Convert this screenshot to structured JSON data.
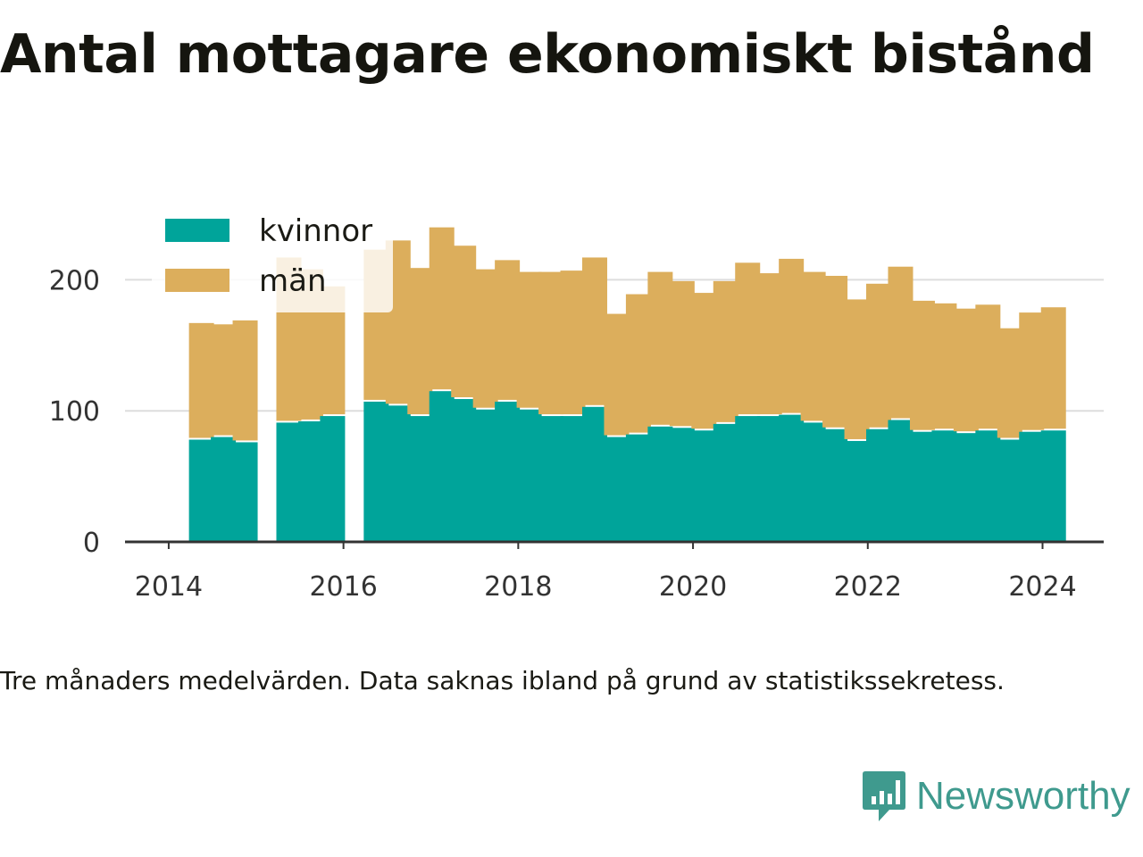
{
  "title": "Antal mottagare ekonomiskt bistånd",
  "caption": "Tre månaders medelvärden. Data saknas ibland på grund av statistikssekretess.",
  "brand": {
    "name": "Newsworthy",
    "color": "#3f9a8e"
  },
  "colors": {
    "kvinnor": "#00a49a",
    "man": "#dcae5c",
    "grid": "#dddddd",
    "axis": "#333333"
  },
  "chart_data": {
    "type": "bar",
    "stacked": true,
    "x_unit": "year",
    "x": [
      2014.375,
      2014.625,
      2014.875,
      2015.375,
      2015.625,
      2015.875,
      2016.375,
      2016.625,
      2016.875,
      2017.125,
      2017.375,
      2017.625,
      2017.875,
      2018.125,
      2018.375,
      2018.625,
      2018.875,
      2019.125,
      2019.375,
      2019.625,
      2019.875,
      2020.125,
      2020.375,
      2020.625,
      2020.875,
      2021.125,
      2021.375,
      2021.625,
      2021.875,
      2022.125,
      2022.375,
      2022.625,
      2022.875,
      2023.125,
      2023.375,
      2023.625,
      2023.875,
      2024.125
    ],
    "series": [
      {
        "name": "kvinnor",
        "values": [
          78,
          80,
          76,
          91,
          92,
          96,
          107,
          104,
          96,
          115,
          109,
          101,
          107,
          101,
          96,
          96,
          103,
          80,
          82,
          88,
          87,
          85,
          90,
          96,
          96,
          97,
          91,
          86,
          77,
          86,
          93,
          84,
          85,
          83,
          85,
          78,
          84,
          85
        ]
      },
      {
        "name": "män",
        "values": [
          89,
          86,
          93,
          126,
          116,
          99,
          116,
          126,
          113,
          125,
          117,
          107,
          108,
          105,
          110,
          111,
          114,
          94,
          107,
          118,
          112,
          105,
          109,
          117,
          109,
          119,
          115,
          117,
          108,
          111,
          117,
          100,
          97,
          95,
          96,
          85,
          91,
          94
        ]
      }
    ],
    "legend": {
      "position": "top-left"
    },
    "xticks": [
      "2014",
      "2016",
      "2018",
      "2020",
      "2022",
      "2024"
    ],
    "yticks": [
      "0",
      "100",
      "200"
    ],
    "xlim": [
      2013.5,
      2024.7
    ],
    "ylim": [
      0,
      250
    ],
    "grid": true
  }
}
